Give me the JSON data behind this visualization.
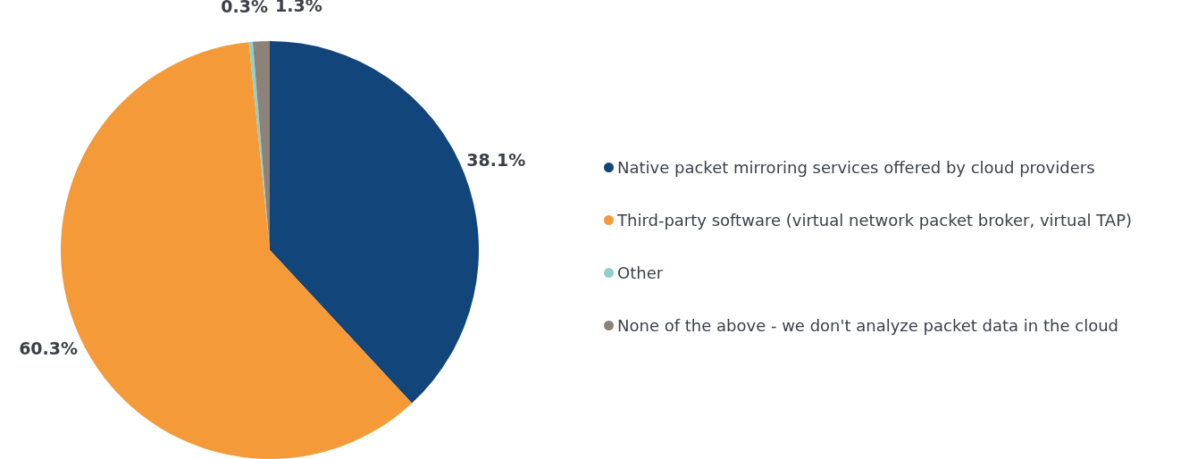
{
  "chart_data": {
    "type": "pie",
    "categories": [
      "Native packet mirroring services offered by cloud providers",
      "Third-party software (virtual network packet broker, virtual TAP)",
      "Other",
      "None of the above - we don't analyze packet data in the cloud"
    ],
    "values": [
      38.1,
      60.3,
      0.3,
      1.3
    ],
    "colors": [
      "#12457a",
      "#f59a38",
      "#8fd0cc",
      "#8c8279"
    ],
    "value_labels": [
      "38.1%",
      "60.3%",
      "0.3%",
      "1.3%"
    ],
    "legend": "right"
  }
}
